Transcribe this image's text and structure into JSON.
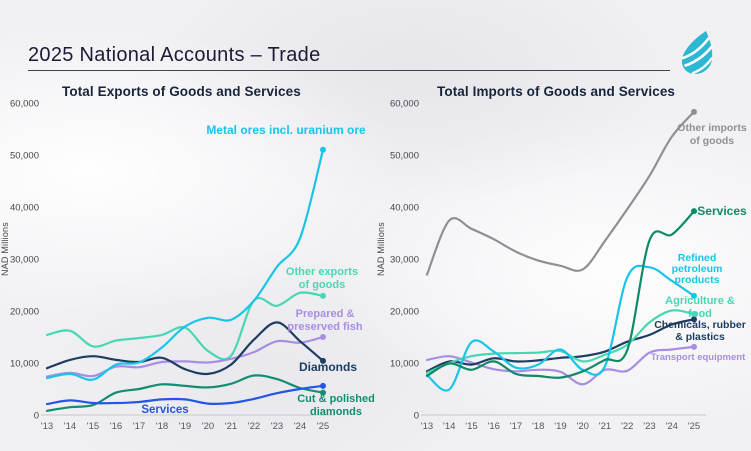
{
  "header": {
    "title": "2025 National Accounts – Trade",
    "logo": "flame-leaf-logo",
    "logo_color": "#2eb7d3"
  },
  "chart_data": [
    {
      "type": "line",
      "title": "Total Exports of Goods and Services",
      "ylabel": "NAD Millions",
      "ylim": [
        0,
        60000
      ],
      "grid": false,
      "legend_position": "inline-labels",
      "y_ticks": [
        "0",
        "10,000",
        "20,000",
        "30,000",
        "40,000",
        "50,000",
        "60,000"
      ],
      "x": [
        "'13",
        "'14",
        "'15",
        "'16",
        "'17",
        "'18",
        "'19",
        "'20",
        "'21",
        "'22",
        "'23",
        "'24",
        "'25"
      ],
      "series": [
        {
          "name": "Metal ores incl. uranium ore",
          "label_lines": [
            "Metal ores incl. uranium ore"
          ],
          "color": "#18c5e8",
          "values": [
            7100,
            7900,
            6800,
            9700,
            10100,
            13000,
            17000,
            18700,
            18300,
            22000,
            28500,
            34000,
            51000
          ]
        },
        {
          "name": "Other exports of goods",
          "label_lines": [
            "Other exports",
            "of goods"
          ],
          "color": "#47d8b2",
          "values": [
            15400,
            16200,
            13200,
            14300,
            14800,
            15400,
            16800,
            12300,
            11400,
            22000,
            21000,
            23500,
            22900
          ]
        },
        {
          "name": "Prepared & preserved fish",
          "label_lines": [
            "Prepared &",
            "preserved fish"
          ],
          "color": "#a88ee2",
          "values": [
            7400,
            8100,
            7500,
            9300,
            9200,
            10200,
            10300,
            10100,
            10800,
            12100,
            14200,
            13900,
            15000
          ]
        },
        {
          "name": "Diamonds",
          "label_lines": [
            "Diamonds"
          ],
          "color": "#1d3d63",
          "values": [
            9000,
            10600,
            11300,
            10600,
            10200,
            11000,
            8800,
            7900,
            9700,
            14500,
            17800,
            14200,
            10400
          ]
        },
        {
          "name": "Cut & polished diamonds",
          "label_lines": [
            "Cut & polished",
            "diamonds"
          ],
          "color": "#128e70",
          "values": [
            800,
            1500,
            1900,
            4300,
            5000,
            5900,
            5600,
            5300,
            6000,
            7600,
            6900,
            5200,
            4300
          ]
        },
        {
          "name": "Services",
          "label_lines": [
            "Services"
          ],
          "color": "#2455e4",
          "values": [
            2100,
            2800,
            2300,
            2300,
            2500,
            3000,
            3000,
            2200,
            2300,
            3100,
            4200,
            5000,
            5600
          ]
        }
      ]
    },
    {
      "type": "line",
      "title": "Total Imports of Goods and Services",
      "ylabel": "NAD Millions",
      "ylim": [
        0,
        60000
      ],
      "grid": false,
      "legend_position": "inline-labels",
      "y_ticks": [
        "0",
        "10,000",
        "20,000",
        "30,000",
        "40,000",
        "50,000",
        "60,000"
      ],
      "x": [
        "'13",
        "'14",
        "'15",
        "'16",
        "'17",
        "'18",
        "'19",
        "'20",
        "'21",
        "'22",
        "'23",
        "'24",
        "'25"
      ],
      "series": [
        {
          "name": "Other imports of goods",
          "label_lines": [
            "Other imports",
            "of goods"
          ],
          "color": "#8f9093",
          "values": [
            27000,
            37400,
            35800,
            33800,
            31400,
            29700,
            28700,
            28000,
            33500,
            39600,
            46000,
            53500,
            58300
          ]
        },
        {
          "name": "Services",
          "label_lines": [
            "Services"
          ],
          "color": "#0e8a68",
          "values": [
            7500,
            9900,
            8700,
            10300,
            7900,
            7500,
            7200,
            8400,
            10600,
            12500,
            33600,
            34700,
            39200
          ]
        },
        {
          "name": "Refined petroleum products",
          "label_lines": [
            "Refined",
            "petroleum",
            "products"
          ],
          "color": "#18c5e8",
          "values": [
            7700,
            4900,
            14000,
            12200,
            9100,
            9700,
            12600,
            8700,
            9400,
            26500,
            28400,
            25800,
            22900
          ]
        },
        {
          "name": "Agriculture & food",
          "label_lines": [
            "Agriculture &",
            "food"
          ],
          "color": "#47d8b2",
          "values": [
            8100,
            10000,
            11300,
            11800,
            11900,
            12000,
            12300,
            10300,
            11600,
            13500,
            17800,
            20100,
            19400
          ]
        },
        {
          "name": "Chemicals, rubber & plastics",
          "label_lines": [
            "Chemicals, rubber",
            "& plastics"
          ],
          "color": "#1d3d63",
          "values": [
            8400,
            10300,
            9700,
            10900,
            10300,
            10500,
            11000,
            11300,
            12200,
            14100,
            15400,
            17400,
            18400
          ]
        },
        {
          "name": "Transport equipment",
          "label_lines": [
            "Transport equipment"
          ],
          "color": "#a88ee2",
          "values": [
            10600,
            11300,
            10100,
            8800,
            8400,
            8700,
            8300,
            5900,
            8700,
            8500,
            12000,
            12600,
            13100
          ]
        }
      ]
    }
  ]
}
